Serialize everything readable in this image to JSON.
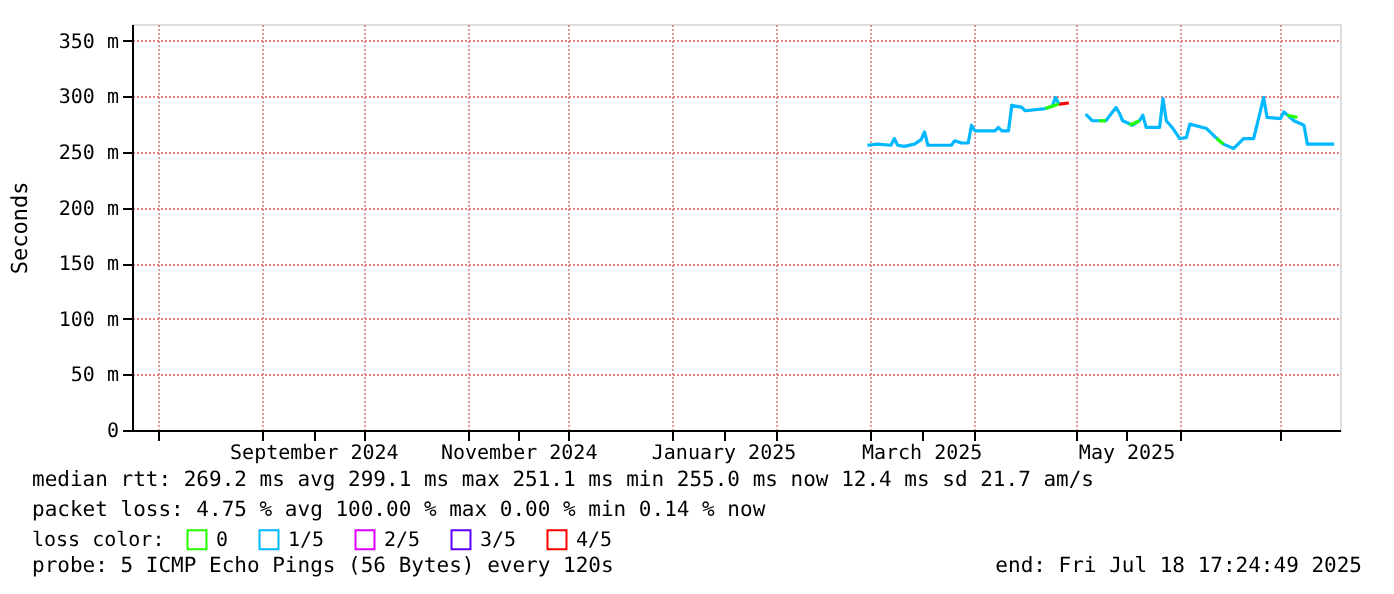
{
  "chart_data": {
    "type": "line",
    "ylabel": "Seconds",
    "xlim": [
      "2024-07-24",
      "2025-07-18T17:24"
    ],
    "ylim": [
      0,
      365
    ],
    "xticks": [
      {
        "value": "2024-08-01",
        "label": null
      },
      {
        "value": "2024-09-01",
        "label": null
      },
      {
        "value": "2024-09-16",
        "label": "September 2024"
      },
      {
        "value": "2024-10-01",
        "label": null
      },
      {
        "value": "2024-11-01",
        "label": null
      },
      {
        "value": "2024-11-16",
        "label": "November 2024"
      },
      {
        "value": "2024-12-01",
        "label": null
      },
      {
        "value": "2025-01-01",
        "label": null
      },
      {
        "value": "2025-01-16",
        "label": "January 2025"
      },
      {
        "value": "2025-02-01",
        "label": null
      },
      {
        "value": "2025-03-01",
        "label": null
      },
      {
        "value": "2025-03-16",
        "label": "March 2025"
      },
      {
        "value": "2025-04-01",
        "label": null
      },
      {
        "value": "2025-05-01",
        "label": null
      },
      {
        "value": "2025-05-16",
        "label": "May 2025"
      },
      {
        "value": "2025-06-01",
        "label": null
      },
      {
        "value": "2025-07-01",
        "label": null
      }
    ],
    "yticks": [
      0,
      {
        "value": 50,
        "label": "50 m"
      },
      {
        "value": 100,
        "label": "100 m"
      },
      {
        "value": 150,
        "label": "150 m"
      },
      {
        "value": 200,
        "label": "200 m"
      },
      {
        "value": 250,
        "label": "250 m"
      },
      {
        "value": 300,
        "label": "300 m"
      },
      {
        "value": 350,
        "label": "350 m"
      }
    ],
    "grid": true,
    "legend": "bottom left",
    "legend_title": "loss color:",
    "marker": "none",
    "line_style": "solid",
    "series": [
      {
        "name": "0",
        "color": "#26ff00",
        "x": [
          "2025-04-22",
          "2025-04-24",
          "2025-04-26",
          "2025-04-27",
          "2025-05-08",
          "2025-05-10",
          "2025-05-11",
          "2025-05-17",
          "2025-05-20",
          "2025-05-21",
          "2025-06-12",
          "2025-06-14",
          "2025-06-15",
          "2025-07-03",
          "2025-07-06"
        ],
        "values": [
          289,
          291,
          293,
          null,
          278,
          278,
          null,
          274,
          278,
          null,
          262,
          257,
          null,
          283,
          281
        ]
      },
      {
        "name": "1/5",
        "color": "#00b8ff",
        "x": [
          "2025-02-28",
          "2025-03-03",
          "2025-03-07",
          "2025-03-08",
          "2025-03-09",
          "2025-03-11",
          "2025-03-14",
          "2025-03-16",
          "2025-03-17",
          "2025-03-18",
          "2025-03-25",
          "2025-03-26",
          "2025-03-28",
          "2025-03-30",
          "2025-03-31",
          "2025-04-01",
          "2025-04-07",
          "2025-04-08",
          "2025-04-09",
          "2025-04-11",
          "2025-04-12",
          "2025-04-15",
          "2025-04-16",
          "2025-04-22",
          "2025-04-24",
          "2025-04-25",
          "2025-04-26",
          "2025-04-29",
          "2025-05-01",
          "2025-05-04",
          "2025-05-06",
          "2025-05-10",
          "2025-05-13",
          "2025-05-14",
          "2025-05-15",
          "2025-05-18",
          "2025-05-20",
          "2025-05-21",
          "2025-05-22",
          "2025-05-26",
          "2025-05-27",
          "2025-05-28",
          "2025-05-30",
          "2025-06-01",
          "2025-06-03",
          "2025-06-04",
          "2025-06-09",
          "2025-06-11",
          "2025-06-14",
          "2025-06-17",
          "2025-06-20",
          "2025-06-23",
          "2025-06-24",
          "2025-06-26",
          "2025-06-27",
          "2025-07-01",
          "2025-07-02",
          "2025-07-05",
          "2025-07-08",
          "2025-07-09",
          "2025-07-17"
        ],
        "values": [
          256,
          257,
          256,
          262,
          256,
          255,
          257,
          261,
          268,
          256,
          256,
          260,
          258,
          258,
          274,
          269,
          269,
          272,
          269,
          269,
          292,
          290,
          287,
          289,
          291,
          299,
          293,
          null,
          null,
          284,
          278,
          278,
          290,
          285,
          278,
          274,
          278,
          283,
          272,
          272,
          298,
          278,
          271,
          262,
          263,
          275,
          271,
          265,
          257,
          253,
          262,
          262,
          274,
          299,
          281,
          280,
          286,
          278,
          274,
          257,
          257
        ]
      },
      {
        "name": "2/5",
        "color": "#dd00ff"
      },
      {
        "name": "3/5",
        "color": "#5e00ff"
      },
      {
        "name": "4/5",
        "color": "#ff0000",
        "x": [
          "2025-04-26",
          "2025-04-29"
        ],
        "values": [
          293,
          294
        ]
      }
    ],
    "annotations": [
      "median rtt:  269.2 ms avg  299.1 ms max  251.1 ms min  255.0 ms now  12.4 ms sd  21.7    am/s",
      "packet loss: 4.75 % avg  100.00 % max  0.00 % min  0.14 % now",
      "probe:       5 ICMP Echo Pings (56 Bytes) every 120s",
      "end: Fri Jul 18 17:24:49 2025"
    ]
  }
}
